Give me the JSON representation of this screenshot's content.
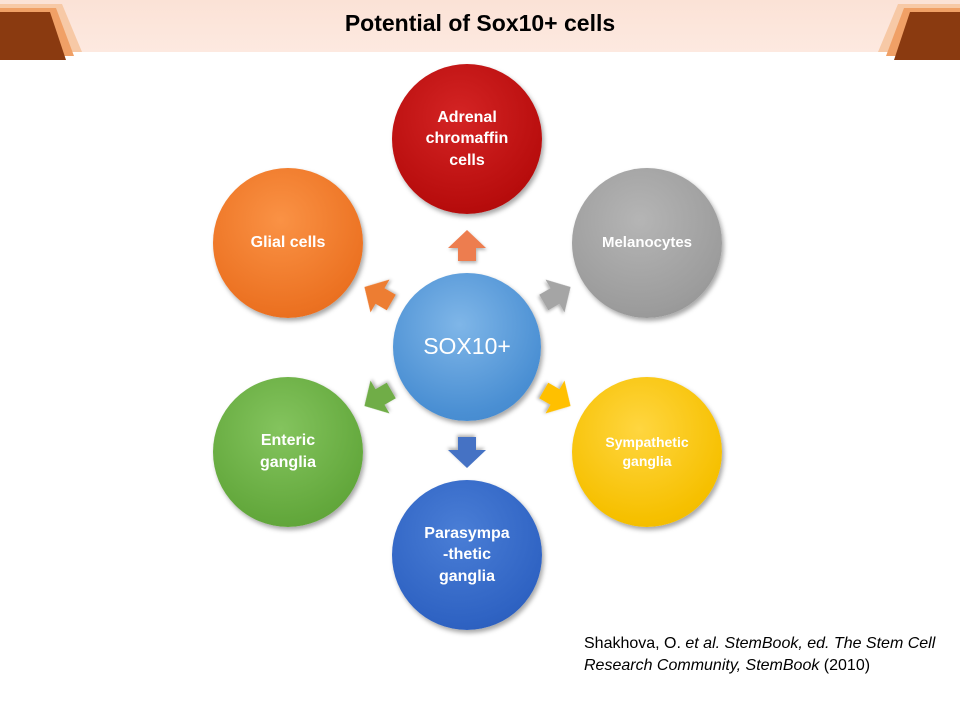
{
  "title": "Potential of Sox10+ cells",
  "center": {
    "label": "SOX10+",
    "color": "#5b9bd5"
  },
  "nodes": [
    {
      "id": "adrenal",
      "label": "Adrenal\nchromaffin\ncells",
      "color": "#c00000"
    },
    {
      "id": "melanocytes",
      "label": "Melanocytes",
      "color": "#a5a5a5"
    },
    {
      "id": "sympathetic",
      "label": "Sympathetic\nganglia",
      "color": "#ffc000"
    },
    {
      "id": "parasympathetic",
      "label": "Parasympa\n-thetic\nganglia",
      "color": "#4472c4"
    },
    {
      "id": "enteric",
      "label": "Enteric\nganglia",
      "color": "#70ad47"
    },
    {
      "id": "glial",
      "label": "Glial  cells",
      "color": "#ed7d31"
    }
  ],
  "citation": {
    "author": "Shakhova, O. ",
    "etal": "et al.",
    "source": " StemBook, ed. The Stem Cell Research Community, StemBook",
    "year": " (2010)"
  }
}
